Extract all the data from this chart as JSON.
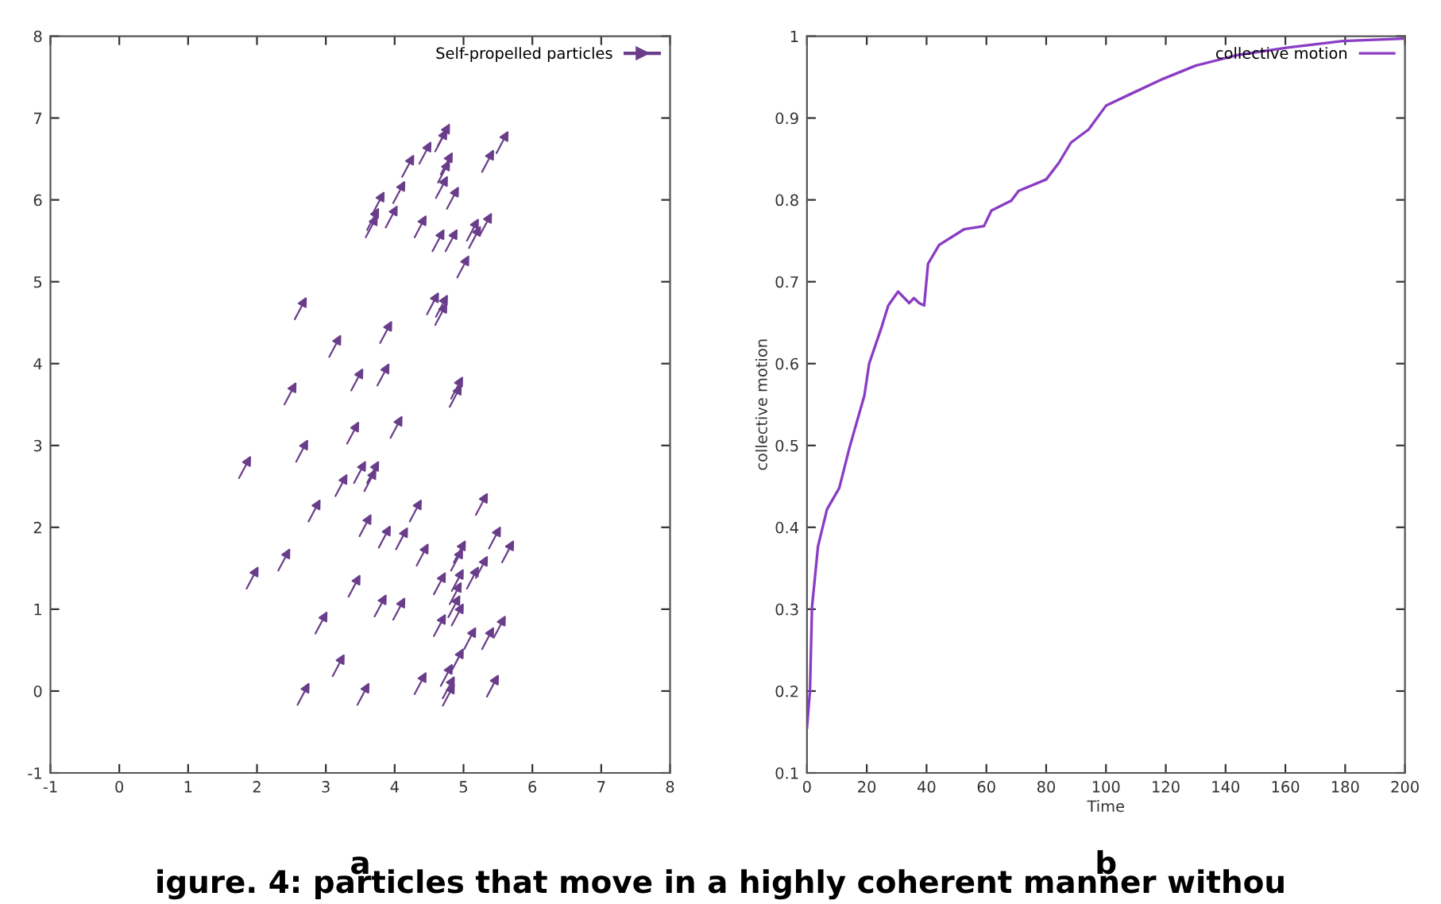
{
  "chart_data": [
    {
      "type": "scatter",
      "xlim": [
        -1,
        8
      ],
      "ylim": [
        -1,
        8
      ],
      "xticks": [
        -1,
        0,
        1,
        2,
        3,
        4,
        5,
        6,
        7,
        8
      ],
      "yticks": [
        -1,
        0,
        1,
        2,
        3,
        4,
        5,
        6,
        7,
        8
      ],
      "legend": "top right",
      "grid": false,
      "annotations": [
        "a",
        "igure. 4: particles that move in a highly coherent manner withou"
      ],
      "series": [
        {
          "name": "Self-propelled particles",
          "color": "#6a3d8a",
          "x": [
            4.71,
            4.67,
            5.56,
            5.35,
            4.44,
            4.19,
            4.75,
            4.71,
            4.06,
            3.76,
            3.68,
            3.95,
            4.68,
            4.84,
            4.37,
            3.66,
            4.63,
            4.82,
            5.13,
            5.32,
            5.16,
            4.99,
            2.63,
            4.55,
            4.68,
            4.67,
            3.13,
            3.87,
            3.83,
            3.45,
            4.9,
            2.48,
            4.88,
            1.82,
            2.65,
            3.39,
            4.02,
            3.22,
            3.49,
            3.68,
            3.64,
            2.83,
            3.57,
            3.85,
            4.1,
            4.3,
            5.26,
            5.45,
            5.64,
            4.4,
            4.94,
            4.9,
            2.39,
            1.93,
            3.41,
            4.65,
            4.91,
            5.13,
            5.26,
            4.88,
            4.86,
            3.79,
            4.06,
            2.93,
            4.65,
            4.91,
            5.09,
            5.35,
            5.52,
            3.18,
            4.91,
            4.75,
            4.37,
            4.78,
            4.78,
            2.67,
            3.54,
            5.42
          ],
          "values": [
            6.79,
            6.72,
            6.7,
            6.47,
            6.57,
            6.41,
            6.44,
            6.34,
            6.09,
            5.96,
            5.76,
            5.79,
            6.15,
            6.02,
            5.67,
            5.67,
            5.5,
            5.5,
            5.63,
            5.7,
            5.54,
            5.18,
            4.67,
            4.73,
            4.7,
            4.6,
            4.21,
            4.38,
            3.86,
            3.8,
            3.7,
            3.63,
            3.6,
            2.73,
            2.93,
            3.15,
            3.22,
            2.51,
            2.67,
            2.67,
            2.57,
            2.2,
            2.02,
            1.88,
            1.86,
            2.2,
            2.28,
            1.87,
            1.7,
            1.66,
            1.7,
            1.6,
            1.6,
            1.38,
            1.28,
            1.31,
            1.35,
            1.38,
            1.51,
            1.19,
            1.03,
            1.04,
            1.0,
            0.83,
            0.8,
            0.93,
            0.64,
            0.64,
            0.78,
            0.31,
            0.38,
            0.19,
            0.09,
            0.04,
            -0.05,
            -0.04,
            -0.04,
            0.06
          ]
        }
      ]
    },
    {
      "type": "line",
      "xlim": [
        0,
        200
      ],
      "ylim": [
        0.1,
        1
      ],
      "xticks": [
        0,
        20,
        40,
        60,
        80,
        100,
        120,
        140,
        160,
        180,
        200
      ],
      "yticks": [
        0.1,
        0.2,
        0.3,
        0.4,
        0.5,
        0.6,
        0.7,
        0.8,
        0.9,
        1
      ],
      "legend": "top right",
      "grid": false,
      "xlabel": "Time",
      "ylabel": "collective motion",
      "annotations": [
        "b"
      ],
      "series": [
        {
          "name": "collective motion",
          "color": "#8a3cc4",
          "x": [
            0,
            1,
            1.7,
            3.7,
            6.7,
            10.8,
            14.2,
            19.2,
            20.8,
            25,
            27.2,
            30.5,
            34.2,
            35.8,
            37.5,
            39.2,
            40.5,
            44.2,
            52.5,
            59.2,
            61.7,
            68.3,
            70.8,
            80,
            84.2,
            88.3,
            94.2,
            100,
            109.2,
            119.2,
            130,
            144.2,
            160.8,
            179.2,
            199.2
          ],
          "values": [
            0.155,
            0.2,
            0.303,
            0.377,
            0.422,
            0.448,
            0.497,
            0.561,
            0.6,
            0.645,
            0.671,
            0.688,
            0.674,
            0.68,
            0.674,
            0.671,
            0.722,
            0.745,
            0.764,
            0.768,
            0.787,
            0.799,
            0.811,
            0.825,
            0.845,
            0.87,
            0.886,
            0.915,
            0.931,
            0.948,
            0.964,
            0.977,
            0.986,
            0.994,
            0.997
          ]
        }
      ]
    }
  ]
}
